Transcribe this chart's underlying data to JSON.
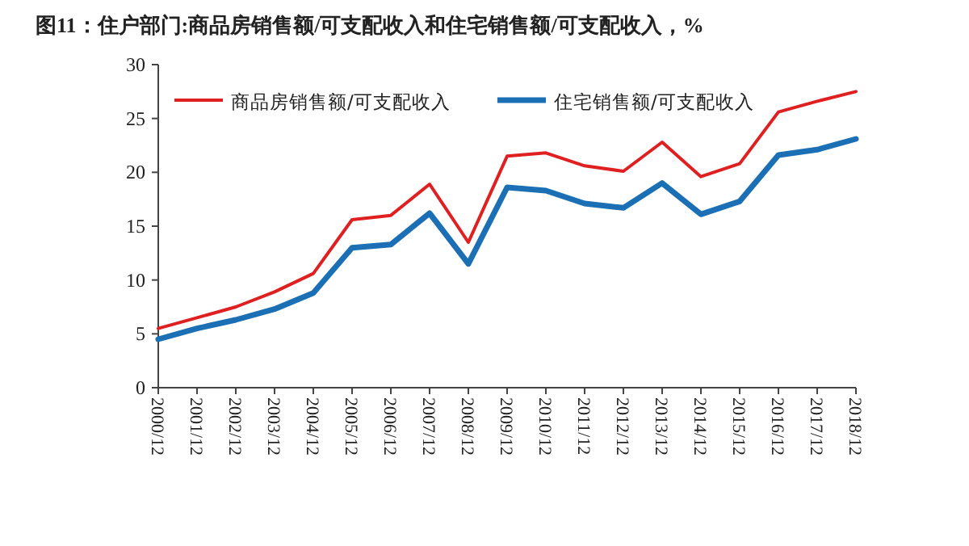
{
  "chart_data": {
    "type": "line",
    "title": "图11：住户部门:商品房销售额/可支配收入和住宅销售额/可支配收入，%",
    "categories": [
      "2000/12",
      "2001/12",
      "2002/12",
      "2003/12",
      "2004/12",
      "2005/12",
      "2006/12",
      "2007/12",
      "2008/12",
      "2009/12",
      "2010/12",
      "2011/12",
      "2012/12",
      "2013/12",
      "2014/12",
      "2015/12",
      "2016/12",
      "2017/12",
      "2018/12"
    ],
    "series": [
      {
        "name": "商品房销售额/可支配收入",
        "color": "#e02020",
        "values": [
          5.5,
          6.5,
          7.5,
          8.9,
          10.6,
          15.6,
          16.0,
          18.9,
          13.5,
          21.5,
          21.8,
          20.6,
          20.1,
          22.8,
          19.6,
          20.8,
          25.6,
          26.6,
          27.5
        ]
      },
      {
        "name": "住宅销售额/可支配收入",
        "color": "#1a6fb5",
        "values": [
          4.5,
          5.5,
          6.3,
          7.3,
          8.8,
          13.0,
          13.3,
          16.2,
          11.5,
          18.6,
          18.3,
          17.1,
          16.7,
          19.0,
          16.1,
          17.3,
          21.6,
          22.1,
          23.1
        ]
      }
    ],
    "ylim": [
      0,
      30
    ],
    "yticks": [
      0,
      5,
      10,
      15,
      20,
      25,
      30
    ],
    "grid": false,
    "legend": "top",
    "marker": "none",
    "line_style": "solid"
  }
}
